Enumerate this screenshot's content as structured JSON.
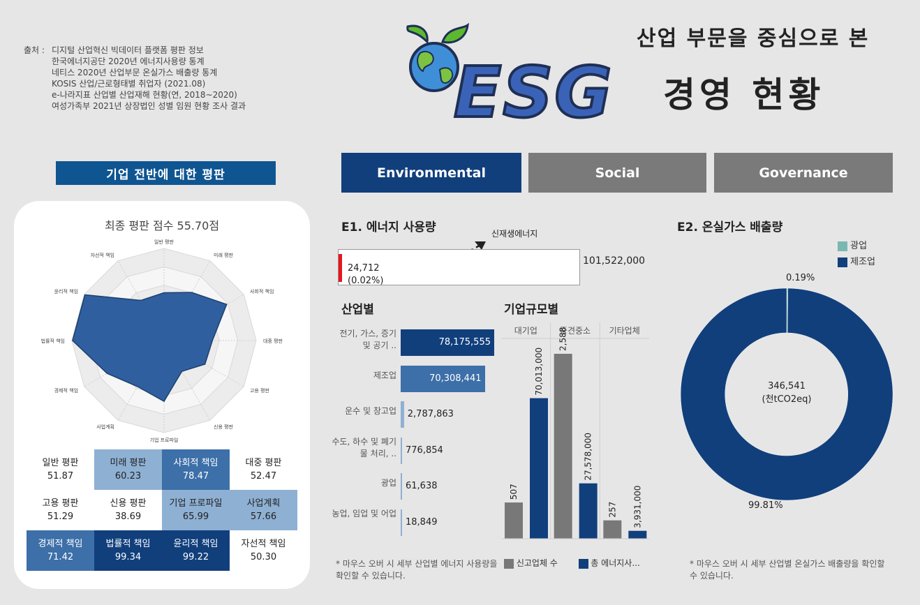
{
  "source": {
    "label": "출처 :",
    "lines": [
      "디지털 산업혁신 빅데이터 플랫폼 평판 정보",
      "한국에너지공단 2020년 에너지사용량 통계",
      "네티스 2020년 산업부문 온실가스 배출량 통계",
      "KOSIS 산업/근로형태별 취업자 (2021.08)",
      "e-나라지표 산업별 산업재해 현황(연, 2018~2020)",
      "여성가족부 2021년 상장법인 성별 임원 현황 조사 결과"
    ]
  },
  "header": {
    "subtitle": "산업 부문을 중심으로 본",
    "logo_text": "ESG",
    "title": "경영 현황"
  },
  "tabs": [
    {
      "label": "Environmental",
      "active": true
    },
    {
      "label": "Social",
      "active": false
    },
    {
      "label": "Governance",
      "active": false
    }
  ],
  "reputation": {
    "section_title": "기업 전반에 대한 평판",
    "chart_title": "최종 평판 점수 55.70점",
    "scores": [
      {
        "label": "일반 평판",
        "value": "51.87",
        "tone": "none"
      },
      {
        "label": "미래 평판",
        "value": "60.23",
        "tone": "light"
      },
      {
        "label": "사회적 책임",
        "value": "78.47",
        "tone": "mid"
      },
      {
        "label": "대중 평판",
        "value": "52.47",
        "tone": "none"
      },
      {
        "label": "고용 평판",
        "value": "51.29",
        "tone": "none"
      },
      {
        "label": "신용 평판",
        "value": "38.69",
        "tone": "none"
      },
      {
        "label": "기업 프로파일",
        "value": "65.99",
        "tone": "light"
      },
      {
        "label": "사업계획",
        "value": "57.66",
        "tone": "light"
      },
      {
        "label": "경제적 책임",
        "value": "71.42",
        "tone": "mid"
      },
      {
        "label": "법률적 책임",
        "value": "99.34",
        "tone": "dark"
      },
      {
        "label": "윤리적 책임",
        "value": "99.22",
        "tone": "dark"
      },
      {
        "label": "자선적 책임",
        "value": "50.30",
        "tone": "none"
      }
    ]
  },
  "energy": {
    "title": "E1. 에너지 사용량",
    "renewable_label": "신재생에너지",
    "renewable_value": "24,712",
    "renewable_pct": "(0.02%)",
    "total_value": "101,522,000",
    "industry_title": "산업별",
    "size_title": "기업규모별",
    "note": "* 마우스 오버 시 세부 산업별 에너지 사용량을 확인할 수 있습니다.",
    "legend_count": "신고업체 수",
    "legend_energy": "총 에너지사..."
  },
  "ghg": {
    "title": "E2. 온실가스 배출량",
    "legend_mining": "광업",
    "legend_manufacturing": "제조업",
    "center_value": "346,541",
    "center_unit": "(천tCO2eq)",
    "pct_mining": "0.19%",
    "pct_manufacturing": "99.81%",
    "note": "* 마우스 오버 시 세부 산업별 온실가스 배출량을 확인할 수 있습니다."
  },
  "colors": {
    "navy": "#113f7c",
    "steel": "#3d6fa8",
    "light_steel": "#8eb0d3",
    "gray": "#787878",
    "teal": "#79b8b0",
    "red": "#e8151d",
    "tab_active": "#113f7c",
    "tab_inactive": "#7a7a7a"
  },
  "chart_data": [
    {
      "type": "radar",
      "title": "최종 평판 점수 55.70점",
      "categories": [
        "일반 평판",
        "미래 평판",
        "사회적 책임",
        "대중 평판",
        "고용 평판",
        "신용 평판",
        "기업 프로파일",
        "사업계획",
        "경제적 책임",
        "법률적 책임",
        "윤리적 책임",
        "자선적 책임"
      ],
      "values": [
        51.87,
        60.23,
        78.47,
        52.47,
        51.29,
        38.69,
        65.99,
        57.66,
        71.42,
        99.34,
        99.22,
        50.3
      ],
      "ylim": [
        0,
        100
      ]
    },
    {
      "type": "bar",
      "title": "산업별",
      "orientation": "horizontal",
      "categories": [
        "전기, 가스, 증기 및 공기 ..",
        "제조업",
        "운수 및 창고업",
        "수도, 하수 및 폐기물 처리, ..",
        "광업",
        "농업, 임업 및 어업"
      ],
      "values": [
        78175555,
        70308441,
        2787863,
        776854,
        61638,
        18849
      ],
      "labels": [
        "78,175,555",
        "70,308,441",
        "2,787,863",
        "776,854",
        "61,638",
        "18,849"
      ]
    },
    {
      "type": "bar",
      "title": "기업규모별",
      "categories": [
        "대기업",
        "중견중소",
        "기타업체"
      ],
      "series": [
        {
          "name": "신고업체 수",
          "values": [
            507,
            2588,
            257
          ],
          "labels": [
            "507",
            "2,588",
            "257"
          ]
        },
        {
          "name": "총 에너지사...",
          "values": [
            70013000,
            27578000,
            3931000
          ],
          "labels": [
            "70,013,000",
            "27,578,000",
            "3,931,000"
          ]
        }
      ]
    },
    {
      "type": "pie",
      "title": "E2. 온실가스 배출량",
      "categories": [
        "광업",
        "제조업"
      ],
      "values": [
        0.19,
        99.81
      ],
      "total": "346,541"
    }
  ]
}
